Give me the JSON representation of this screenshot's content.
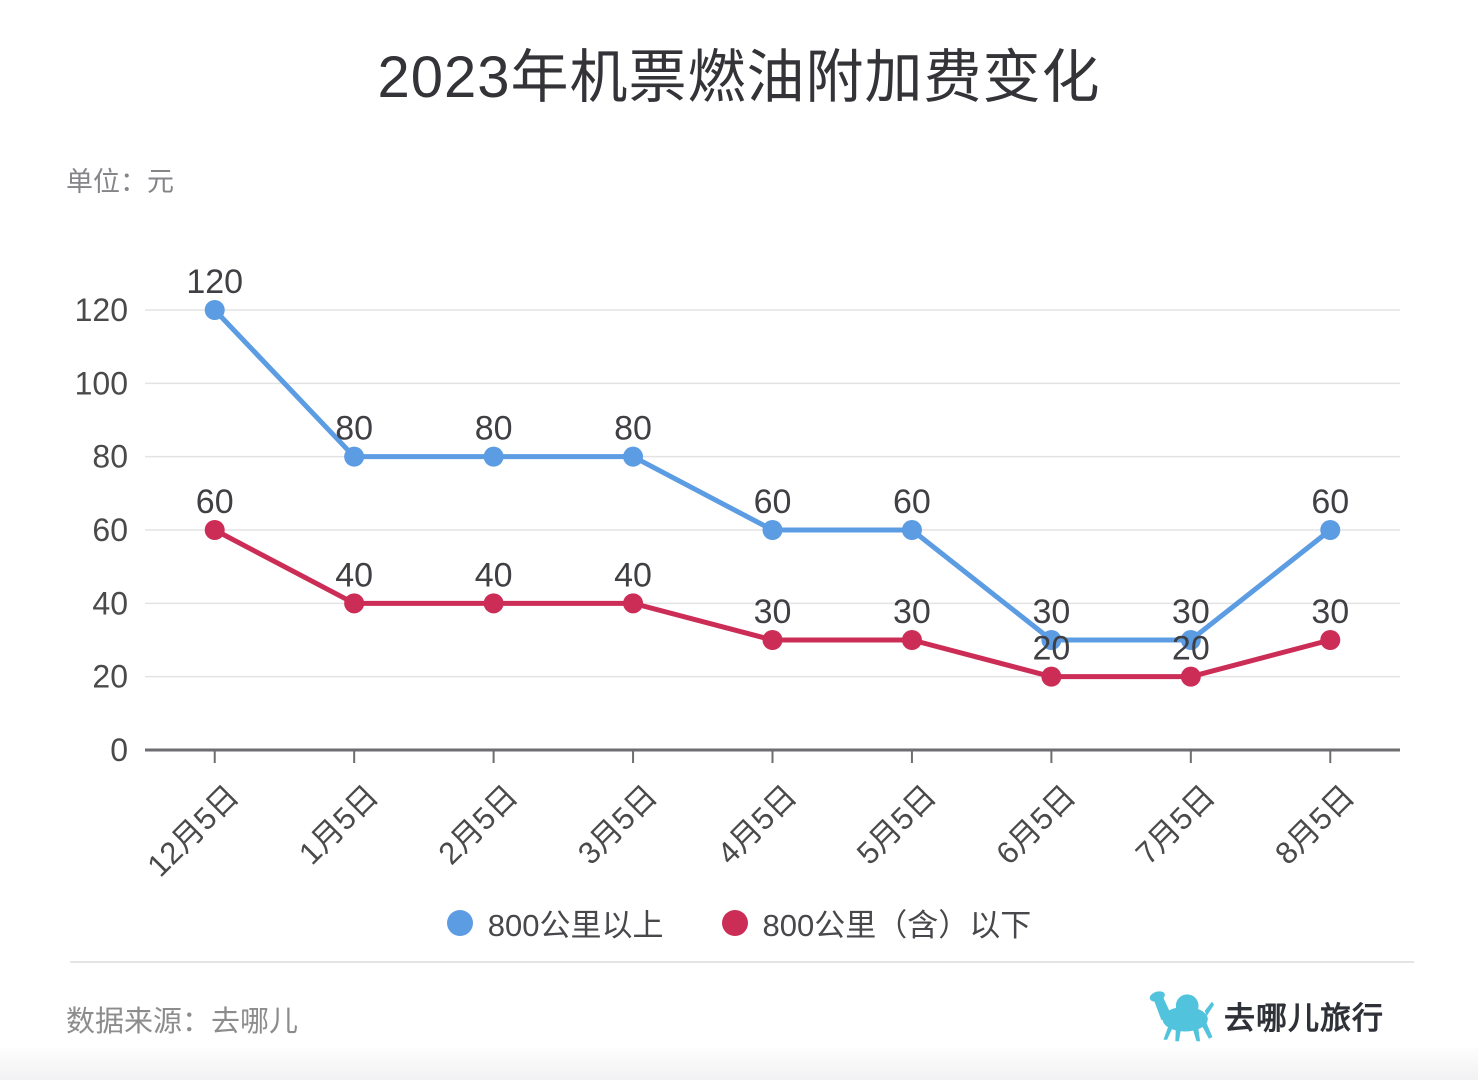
{
  "title": "2023年机票燃油附加费变化",
  "unit_label": "单位：元",
  "source_label": "数据来源：去哪儿",
  "logo_text": "去哪儿旅行",
  "colors": {
    "blue_series": "#5B9CE3",
    "red_series": "#CC2D56",
    "grid_line": "#e3e3e4",
    "axis_line": "#6e6e70",
    "value_label": "#3f3f44",
    "axis_label": "#4a4a4c",
    "logo_teal": "#52C3DD"
  },
  "chart_data": {
    "type": "line",
    "categories": [
      "12月5日",
      "1月5日",
      "2月5日",
      "3月5日",
      "4月5日",
      "5月5日",
      "6月5日",
      "7月5日",
      "8月5日"
    ],
    "series": [
      {
        "name": "800公里以上",
        "color_key": "blue_series",
        "values": [
          120,
          80,
          80,
          80,
          60,
          60,
          30,
          30,
          60
        ]
      },
      {
        "name": "800公里（含）以下",
        "color_key": "red_series",
        "values": [
          60,
          40,
          40,
          40,
          30,
          30,
          20,
          20,
          30
        ]
      }
    ],
    "ylim": [
      0,
      120
    ],
    "y_ticks": [
      0,
      20,
      40,
      60,
      80,
      100,
      120
    ],
    "grid": "horizontal-only",
    "legend_position": "bottom",
    "data_labels": true,
    "x_label_rotation": -45
  }
}
